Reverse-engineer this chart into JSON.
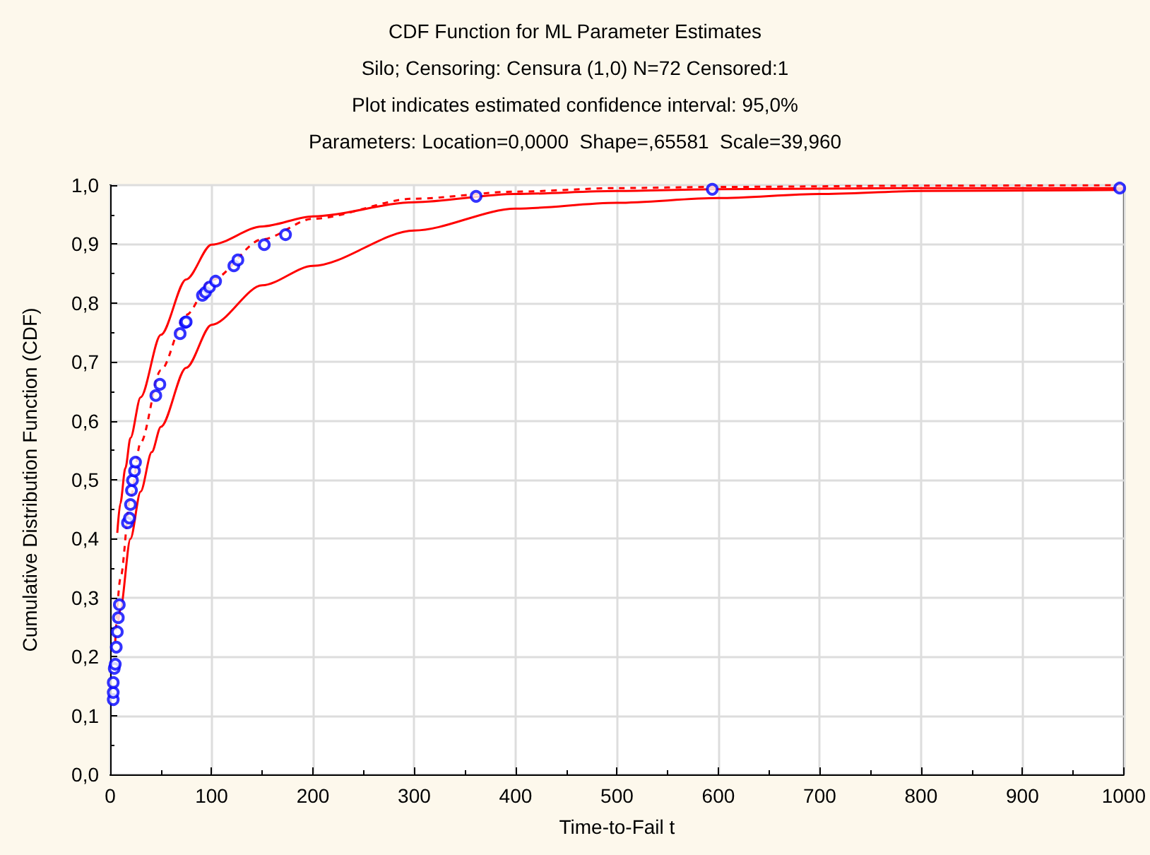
{
  "chart_data": {
    "type": "scatter",
    "title": "CDF Function for ML Parameter Estimates",
    "subtitle": "Silo; Censoring: Censura (1,0) N=72 Censored:1\nPlot indicates estimated confidence interval: 95,0%\nParameters: Location=0,0000  Shape=,65581  Scale=39,960",
    "xlabel": "Time-to-Fail t",
    "ylabel": "Cumulative Distribution Function (CDF)",
    "xlim": [
      0,
      1000
    ],
    "xticks": [
      0,
      100,
      200,
      300,
      400,
      500,
      600,
      700,
      800,
      900,
      1000
    ],
    "ylim": [
      0,
      1
    ],
    "yticks": [
      {
        "value": 0,
        "label": "0,0"
      },
      {
        "value": 0.1,
        "label": "0,1"
      },
      {
        "value": 0.2,
        "label": "0,2"
      },
      {
        "value": 0.3,
        "label": "0,3"
      },
      {
        "value": 0.4,
        "label": "0,4"
      },
      {
        "value": 0.5,
        "label": "0,5"
      },
      {
        "value": 0.6,
        "label": "0,6"
      },
      {
        "value": 0.7,
        "label": "0,7"
      },
      {
        "value": 0.8,
        "label": "0,8"
      },
      {
        "value": 0.9,
        "label": "0,9"
      },
      {
        "value": 1,
        "label": "1,0"
      }
    ],
    "grid": true,
    "series": [
      {
        "type": "line",
        "color": "#ff0000",
        "line_style": "dashed",
        "marker": "none",
        "x": [
          5,
          10,
          20,
          30,
          50,
          75,
          100,
          150,
          200,
          300,
          400,
          500,
          600,
          800,
          1000
        ],
        "values": [
          0.226,
          0.332,
          0.47,
          0.563,
          0.686,
          0.78,
          0.839,
          0.908,
          0.943,
          0.977,
          0.989,
          0.995,
          0.997,
          0.999,
          1.0
        ]
      },
      {
        "type": "line",
        "color": "#ff0000",
        "line_style": "solid",
        "marker": "none",
        "x": [
          7,
          10,
          15,
          20,
          30,
          50,
          75,
          100,
          150,
          200,
          300,
          400,
          500,
          600,
          800,
          1000
        ],
        "values": [
          0.41,
          0.46,
          0.52,
          0.571,
          0.64,
          0.746,
          0.84,
          0.899,
          0.93,
          0.947,
          0.971,
          0.985,
          0.99,
          0.993,
          0.995,
          0.995
        ]
      },
      {
        "type": "line",
        "color": "#ff0000",
        "line_style": "solid",
        "marker": "none",
        "x": [
          8,
          10,
          20,
          30,
          41,
          50,
          75,
          100,
          150,
          200,
          300,
          400,
          500,
          600,
          700,
          800,
          1000
        ],
        "values": [
          0.26,
          0.28,
          0.4,
          0.48,
          0.547,
          0.59,
          0.69,
          0.763,
          0.83,
          0.863,
          0.923,
          0.96,
          0.97,
          0.978,
          0.985,
          0.99,
          0.992
        ]
      },
      {
        "color": "#0000ff",
        "marker": "circle",
        "x": [
          3,
          3,
          3,
          4,
          5,
          6,
          7,
          8,
          9,
          17,
          19,
          20,
          21,
          22,
          24,
          25,
          45,
          49,
          69,
          74,
          75,
          91,
          94,
          98,
          104,
          122,
          126,
          152,
          173,
          361,
          594,
          996
        ],
        "values": [
          0.127,
          0.139,
          0.156,
          0.18,
          0.187,
          0.216,
          0.242,
          0.266,
          0.288,
          0.427,
          0.435,
          0.458,
          0.482,
          0.499,
          0.515,
          0.53,
          0.643,
          0.662,
          0.748,
          0.767,
          0.768,
          0.813,
          0.818,
          0.827,
          0.837,
          0.863,
          0.873,
          0.899,
          0.916,
          0.981,
          0.993,
          0.995
        ]
      }
    ]
  }
}
